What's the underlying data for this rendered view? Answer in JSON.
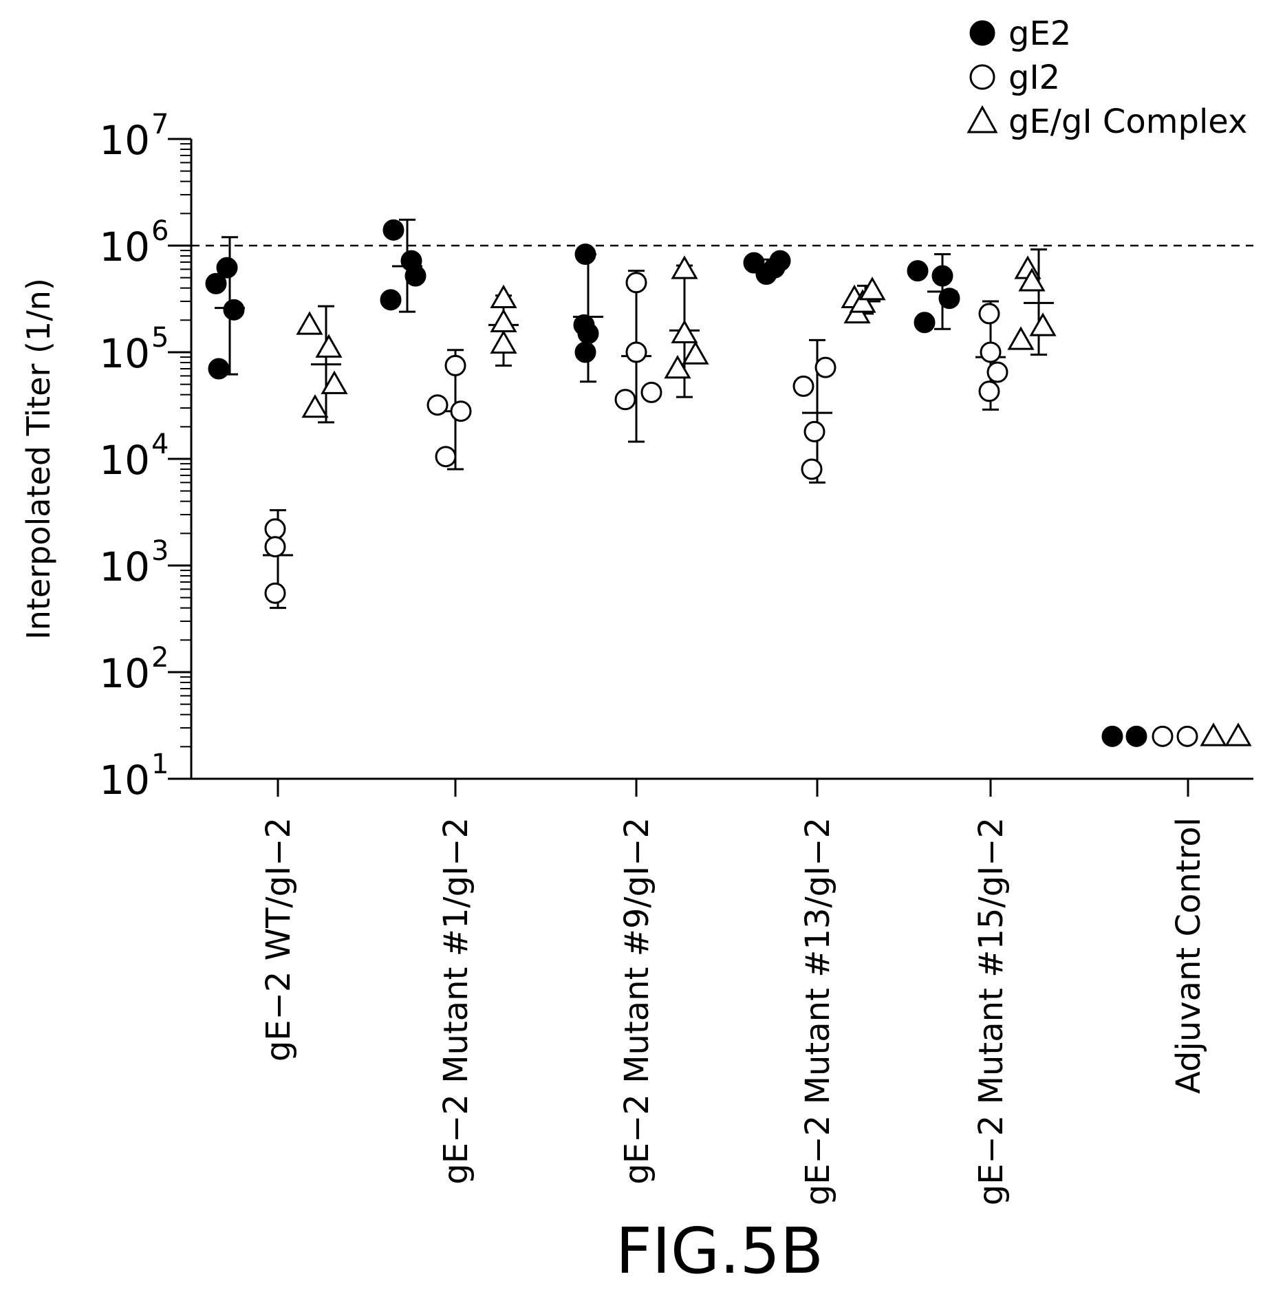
{
  "chart_data": {
    "type": "scatter",
    "ylabel": "Interpolated Titer (1/n)",
    "yscale": "log",
    "ylim": [
      10,
      10000000
    ],
    "y_ticks": [
      {
        "value": 10,
        "base": "10",
        "exp": "1"
      },
      {
        "value": 100,
        "base": "10",
        "exp": "2"
      },
      {
        "value": 1000,
        "base": "10",
        "exp": "3"
      },
      {
        "value": 10000,
        "base": "10",
        "exp": "4"
      },
      {
        "value": 100000,
        "base": "10",
        "exp": "5"
      },
      {
        "value": 1000000,
        "base": "10",
        "exp": "6"
      },
      {
        "value": 10000000,
        "base": "10",
        "exp": "7"
      }
    ],
    "reference_line": 1000000,
    "grid": false,
    "legend_position": "top-right",
    "legend": [
      {
        "name": "gE2",
        "marker": "filled-circle"
      },
      {
        "name": "gI2",
        "marker": "open-circle"
      },
      {
        "name": "gE/gI Complex",
        "marker": "open-triangle"
      }
    ],
    "categories": [
      "gE−2 WT/gI−2",
      "gE−2 Mutant #1/gI−2",
      "gE−2 Mutant #9/gI−2",
      "gE−2 Mutant #13/gI−2",
      "gE−2 Mutant #15/gI−2",
      "Adjuvant Control"
    ],
    "groups": [
      {
        "category": "gE−2 WT/gI−2",
        "series": [
          {
            "name": "gE2",
            "values": [
              440000,
              620000,
              250000,
              70000
            ],
            "mean": 260000,
            "error": [
              62000,
              1200000
            ]
          },
          {
            "name": "gI2",
            "values": [
              2200,
              1500,
              550
            ],
            "mean": 1250,
            "error": [
              400,
              3300
            ]
          },
          {
            "name": "gE/gI Complex",
            "values": [
              180000,
              30000,
              110000,
              50000
            ],
            "mean": 77000,
            "error": [
              22000,
              270000
            ]
          }
        ]
      },
      {
        "category": "gE−2 Mutant #1/gI−2",
        "series": [
          {
            "name": "gE2",
            "values": [
              1400000,
              310000,
              720000,
              520000
            ],
            "mean": 640000,
            "error": [
              240000,
              1750000
            ]
          },
          {
            "name": "gI2",
            "values": [
              32000,
              10500,
              75000,
              28000
            ],
            "mean": 28000,
            "error": [
              8000,
              105000
            ]
          },
          {
            "name": "gE/gI Complex",
            "values": [
              320000,
              190000,
              120000
            ],
            "mean": 180000,
            "error": [
              75000,
              340000
            ]
          }
        ]
      },
      {
        "category": "gE−2 Mutant #9/gI−2",
        "series": [
          {
            "name": "gE2",
            "values": [
              830000,
              180000,
              150000,
              100000
            ],
            "mean": 215000,
            "error": [
              53000,
              830000
            ]
          },
          {
            "name": "gI2",
            "values": [
              36000,
              450000,
              100000,
              42000
            ],
            "mean": 92000,
            "error": [
              14500,
              580000
            ]
          },
          {
            "name": "gE/gI Complex",
            "values": [
              70000,
              600000,
              150000,
              95000
            ],
            "mean": 160000,
            "error": [
              38000,
              650000
            ]
          }
        ]
      },
      {
        "category": "gE−2 Mutant #13/gI−2",
        "series": [
          {
            "name": "gE2",
            "values": [
              690000,
              540000,
              620000,
              720000
            ],
            "mean": 640000,
            "error": [
              550000,
              740000
            ]
          },
          {
            "name": "gI2",
            "values": [
              48000,
              8000,
              18000,
              72000
            ],
            "mean": 27000,
            "error": [
              6000,
              130000
            ]
          },
          {
            "name": "gE/gI Complex",
            "values": [
              320000,
              230000,
              290000,
              380000
            ],
            "mean": 300000,
            "error": [
              230000,
              420000
            ]
          }
        ]
      },
      {
        "category": "gE−2 Mutant #15/gI−2",
        "series": [
          {
            "name": "gE2",
            "values": [
              580000,
              190000,
              520000,
              320000
            ],
            "mean": 370000,
            "error": [
              165000,
              830000
            ]
          },
          {
            "name": "gI2",
            "values": [
              43000,
              230000,
              100000,
              65000
            ],
            "mean": 90000,
            "error": [
              29000,
              300000
            ]
          },
          {
            "name": "gE/gI Complex",
            "values": [
              600000,
              130000,
              460000,
              175000
            ],
            "mean": 290000,
            "error": [
              95000,
              920000
            ]
          }
        ]
      },
      {
        "category": "Adjuvant Control",
        "series": [
          {
            "name": "gE2",
            "values": [
              25,
              25
            ]
          },
          {
            "name": "gI2",
            "values": [
              25,
              25
            ]
          },
          {
            "name": "gE/gI Complex",
            "values": [
              25,
              25
            ]
          }
        ]
      }
    ]
  },
  "figure_label": "FIG.5B"
}
